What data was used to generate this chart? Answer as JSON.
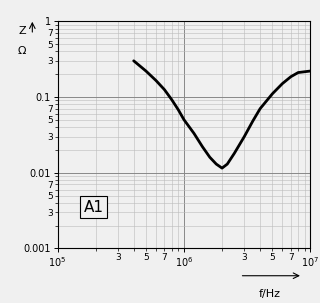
{
  "title": "",
  "xlabel": "f/Hz",
  "ylabel": "Z\nΩ",
  "xlim": [
    100000.0,
    10000000.0
  ],
  "ylim": [
    0.001,
    1
  ],
  "label": "A1",
  "curve_x": [
    400000.0,
    500000.0,
    600000.0,
    700000.0,
    800000.0,
    900000.0,
    1000000.0,
    1200000.0,
    1400000.0,
    1600000.0,
    1800000.0,
    2000000.0,
    2200000.0,
    2500000.0,
    3000000.0,
    3500000.0,
    4000000.0,
    5000000.0,
    6000000.0,
    7000000.0,
    8000000.0,
    10000000.0
  ],
  "curve_y": [
    0.3,
    0.22,
    0.165,
    0.125,
    0.092,
    0.068,
    0.05,
    0.033,
    0.022,
    0.016,
    0.013,
    0.0115,
    0.013,
    0.018,
    0.03,
    0.048,
    0.07,
    0.11,
    0.15,
    0.185,
    0.21,
    0.22
  ],
  "line_color": "#000000",
  "line_width": 2.0,
  "bg_color": "#f0f0f0",
  "grid_major_color": "#888888",
  "grid_minor_color": "#bbbbbb",
  "spine_color": "#000000"
}
